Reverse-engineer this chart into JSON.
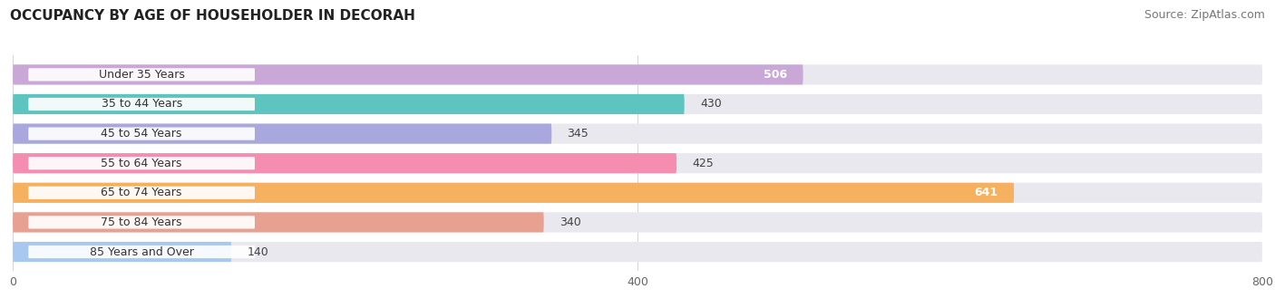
{
  "title": "OCCUPANCY BY AGE OF HOUSEHOLDER IN DECORAH",
  "source": "Source: ZipAtlas.com",
  "categories": [
    "Under 35 Years",
    "35 to 44 Years",
    "45 to 54 Years",
    "55 to 64 Years",
    "65 to 74 Years",
    "75 to 84 Years",
    "85 Years and Over"
  ],
  "values": [
    506,
    430,
    345,
    425,
    641,
    340,
    140
  ],
  "bar_colors": [
    "#c9a8d8",
    "#5ec4bf",
    "#a8a8df",
    "#f48db0",
    "#f5b060",
    "#e8a090",
    "#a8c8f0"
  ],
  "bar_bg_color": "#e8e8ee",
  "label_box_color": "#ffffff",
  "xlim": [
    0,
    800
  ],
  "xticks": [
    0,
    400,
    800
  ],
  "title_fontsize": 11,
  "source_fontsize": 9,
  "label_fontsize": 9,
  "value_fontsize": 9,
  "bar_height": 0.68,
  "figure_bg": "#ffffff",
  "axes_bg": "#ffffff",
  "white_label_threshold": 500
}
